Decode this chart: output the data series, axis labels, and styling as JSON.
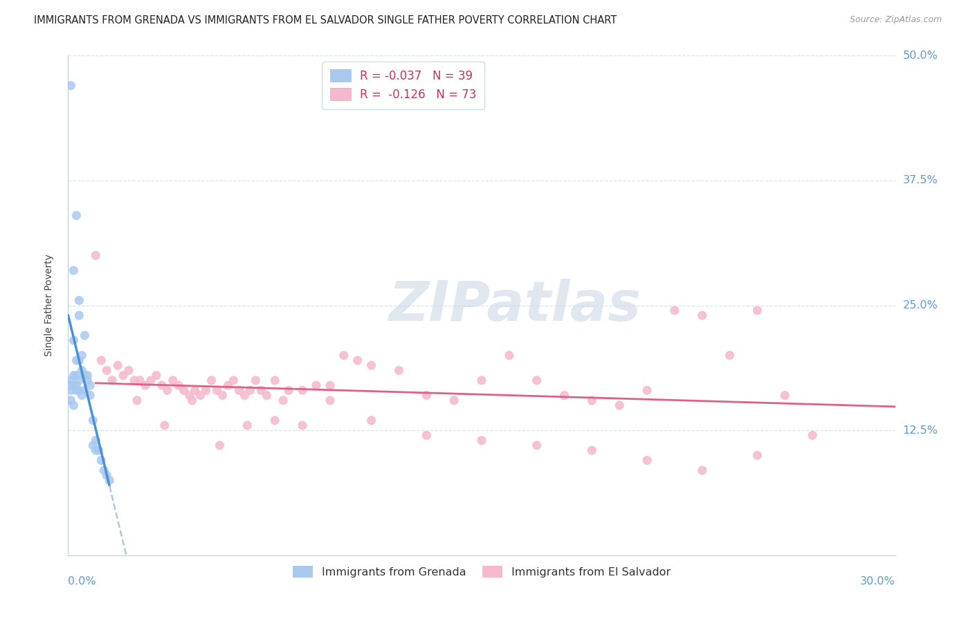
{
  "title": "IMMIGRANTS FROM GRENADA VS IMMIGRANTS FROM EL SALVADOR SINGLE FATHER POVERTY CORRELATION CHART",
  "source": "Source: ZipAtlas.com",
  "ylabel": "Single Father Poverty",
  "legend_label_grenada": "Immigrants from Grenada",
  "legend_label_salvador": "Immigrants from El Salvador",
  "color_grenada": "#a8c8f0",
  "color_salvador": "#f5b8cc",
  "color_grenada_line": "#4a90d9",
  "color_salvador_line": "#e06080",
  "color_dashed": "#b0c8d8",
  "background_color": "#ffffff",
  "grid_color": "#d8e4ec",
  "watermark_text": "ZIPatlas",
  "x_range": [
    0.0,
    0.3
  ],
  "y_range": [
    0.0,
    0.5
  ],
  "grenada_R": -0.037,
  "grenada_N": 39,
  "salvador_R": -0.126,
  "salvador_N": 73,
  "grenada_x": [
    0.001,
    0.001,
    0.001,
    0.001,
    0.001,
    0.002,
    0.002,
    0.002,
    0.002,
    0.002,
    0.003,
    0.003,
    0.003,
    0.003,
    0.003,
    0.004,
    0.004,
    0.004,
    0.004,
    0.004,
    0.005,
    0.005,
    0.005,
    0.006,
    0.006,
    0.006,
    0.007,
    0.007,
    0.008,
    0.008,
    0.009,
    0.009,
    0.01,
    0.01,
    0.011,
    0.012,
    0.013,
    0.014,
    0.015
  ],
  "grenada_y": [
    0.47,
    0.175,
    0.17,
    0.165,
    0.155,
    0.285,
    0.215,
    0.18,
    0.17,
    0.15,
    0.34,
    0.195,
    0.18,
    0.17,
    0.165,
    0.255,
    0.24,
    0.195,
    0.175,
    0.165,
    0.2,
    0.185,
    0.16,
    0.22,
    0.18,
    0.165,
    0.18,
    0.175,
    0.17,
    0.16,
    0.135,
    0.11,
    0.115,
    0.105,
    0.105,
    0.095,
    0.085,
    0.08,
    0.075
  ],
  "salvador_x": [
    0.01,
    0.012,
    0.014,
    0.016,
    0.018,
    0.02,
    0.022,
    0.024,
    0.026,
    0.028,
    0.03,
    0.032,
    0.034,
    0.036,
    0.038,
    0.04,
    0.042,
    0.044,
    0.046,
    0.048,
    0.05,
    0.052,
    0.054,
    0.056,
    0.058,
    0.06,
    0.062,
    0.064,
    0.066,
    0.068,
    0.07,
    0.072,
    0.075,
    0.078,
    0.08,
    0.085,
    0.09,
    0.095,
    0.1,
    0.105,
    0.11,
    0.12,
    0.13,
    0.14,
    0.15,
    0.16,
    0.17,
    0.18,
    0.19,
    0.2,
    0.21,
    0.22,
    0.23,
    0.24,
    0.25,
    0.26,
    0.27,
    0.025,
    0.035,
    0.045,
    0.055,
    0.065,
    0.075,
    0.085,
    0.095,
    0.11,
    0.13,
    0.15,
    0.17,
    0.19,
    0.21,
    0.23,
    0.25
  ],
  "salvador_y": [
    0.3,
    0.195,
    0.185,
    0.175,
    0.19,
    0.18,
    0.185,
    0.175,
    0.175,
    0.17,
    0.175,
    0.18,
    0.17,
    0.165,
    0.175,
    0.17,
    0.165,
    0.16,
    0.165,
    0.16,
    0.165,
    0.175,
    0.165,
    0.16,
    0.17,
    0.175,
    0.165,
    0.16,
    0.165,
    0.175,
    0.165,
    0.16,
    0.175,
    0.155,
    0.165,
    0.165,
    0.17,
    0.17,
    0.2,
    0.195,
    0.19,
    0.185,
    0.16,
    0.155,
    0.175,
    0.2,
    0.175,
    0.16,
    0.155,
    0.15,
    0.165,
    0.245,
    0.24,
    0.2,
    0.245,
    0.16,
    0.12,
    0.155,
    0.13,
    0.155,
    0.11,
    0.13,
    0.135,
    0.13,
    0.155,
    0.135,
    0.12,
    0.115,
    0.11,
    0.105,
    0.095,
    0.085,
    0.1
  ]
}
